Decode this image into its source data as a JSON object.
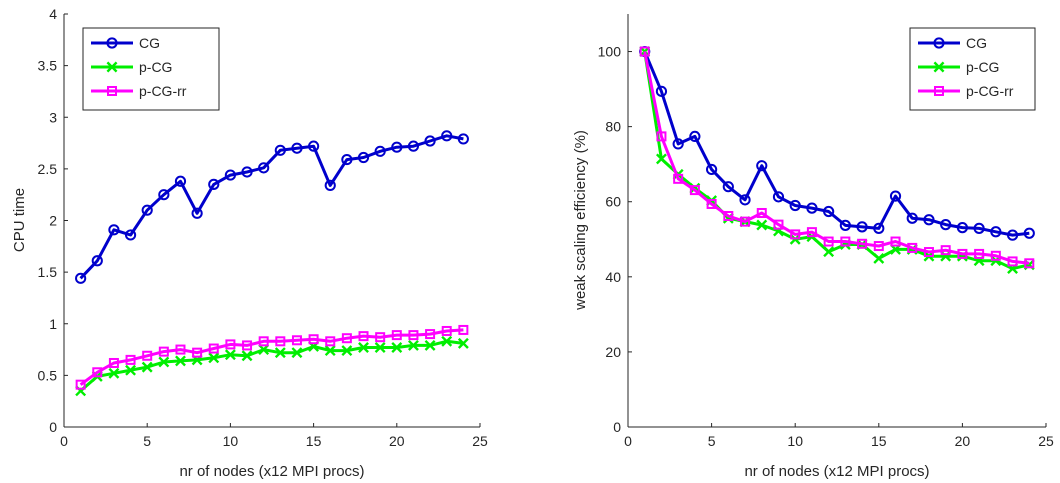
{
  "chart_data": [
    {
      "type": "line",
      "title": "",
      "xlabel": "nr of nodes (x12 MPI procs)",
      "ylabel": "CPU time",
      "xlim": [
        0,
        25
      ],
      "ylim": [
        0,
        4
      ],
      "xticks": [
        0,
        5,
        10,
        15,
        20,
        25
      ],
      "yticks": [
        0,
        0.5,
        1,
        1.5,
        2,
        2.5,
        3,
        3.5,
        4
      ],
      "xtick_labels": [
        "0",
        "5",
        "10",
        "15",
        "20",
        "25"
      ],
      "ytick_labels": [
        "0",
        "0.5",
        "1",
        "1.5",
        "2",
        "2.5",
        "3",
        "3.5",
        "4"
      ],
      "grid": false,
      "legend_position": "top-left",
      "x": [
        1,
        2,
        3,
        4,
        5,
        6,
        7,
        8,
        9,
        10,
        11,
        12,
        13,
        14,
        15,
        16,
        17,
        18,
        19,
        20,
        21,
        22,
        23,
        24
      ],
      "series": [
        {
          "name": "CG",
          "color": "#0000cc",
          "marker": "circle",
          "values": [
            1.44,
            1.61,
            1.91,
            1.86,
            2.1,
            2.25,
            2.38,
            2.07,
            2.35,
            2.44,
            2.47,
            2.51,
            2.68,
            2.7,
            2.72,
            2.34,
            2.59,
            2.61,
            2.67,
            2.71,
            2.72,
            2.77,
            2.82,
            2.79
          ]
        },
        {
          "name": "p-CG",
          "color": "#00ee00",
          "marker": "x",
          "values": [
            0.35,
            0.49,
            0.52,
            0.55,
            0.58,
            0.63,
            0.64,
            0.65,
            0.67,
            0.7,
            0.69,
            0.75,
            0.72,
            0.72,
            0.78,
            0.74,
            0.74,
            0.77,
            0.77,
            0.77,
            0.79,
            0.79,
            0.83,
            0.81
          ]
        },
        {
          "name": "p-CG-rr",
          "color": "#ff00ff",
          "marker": "square",
          "values": [
            0.41,
            0.53,
            0.62,
            0.65,
            0.69,
            0.73,
            0.75,
            0.72,
            0.76,
            0.8,
            0.79,
            0.83,
            0.83,
            0.84,
            0.85,
            0.83,
            0.86,
            0.88,
            0.87,
            0.89,
            0.89,
            0.9,
            0.93,
            0.94
          ]
        }
      ]
    },
    {
      "type": "line",
      "title": "",
      "xlabel": "nr of nodes (x12 MPI procs)",
      "ylabel": "weak scaling efficiency (%)",
      "xlim": [
        0,
        25
      ],
      "ylim": [
        0,
        110
      ],
      "xticks": [
        0,
        5,
        10,
        15,
        20,
        25
      ],
      "yticks": [
        0,
        20,
        40,
        60,
        80,
        100
      ],
      "xtick_labels": [
        "0",
        "5",
        "10",
        "15",
        "20",
        "25"
      ],
      "ytick_labels": [
        "0",
        "20",
        "40",
        "60",
        "80",
        "100"
      ],
      "grid": false,
      "legend_position": "top-right",
      "x": [
        1,
        2,
        3,
        4,
        5,
        6,
        7,
        8,
        9,
        10,
        11,
        12,
        13,
        14,
        15,
        16,
        17,
        18,
        19,
        20,
        21,
        22,
        23,
        24
      ],
      "series": [
        {
          "name": "CG",
          "color": "#0000cc",
          "marker": "circle",
          "values": [
            100,
            89.4,
            75.4,
            77.4,
            68.6,
            64.0,
            60.5,
            69.6,
            61.3,
            59.0,
            58.3,
            57.4,
            53.7,
            53.3,
            52.9,
            61.5,
            55.6,
            55.2,
            53.9,
            53.1,
            52.9,
            52.0,
            51.1,
            51.6
          ]
        },
        {
          "name": "p-CG",
          "color": "#00ee00",
          "marker": "x",
          "values": [
            100,
            71.4,
            67.3,
            63.6,
            60.3,
            55.6,
            54.7,
            53.8,
            52.2,
            50.0,
            50.7,
            46.7,
            48.6,
            48.6,
            44.9,
            47.3,
            47.3,
            45.5,
            45.5,
            45.5,
            44.3,
            44.3,
            42.2,
            43.2
          ]
        },
        {
          "name": "p-CG-rr",
          "color": "#ff00ff",
          "marker": "square",
          "values": [
            100,
            77.4,
            66.1,
            63.1,
            59.4,
            56.2,
            54.7,
            57.0,
            53.9,
            51.3,
            51.9,
            49.4,
            49.4,
            48.8,
            48.2,
            49.4,
            47.7,
            46.6,
            47.1,
            46.1,
            46.1,
            45.6,
            44.1,
            43.6
          ]
        }
      ]
    }
  ]
}
